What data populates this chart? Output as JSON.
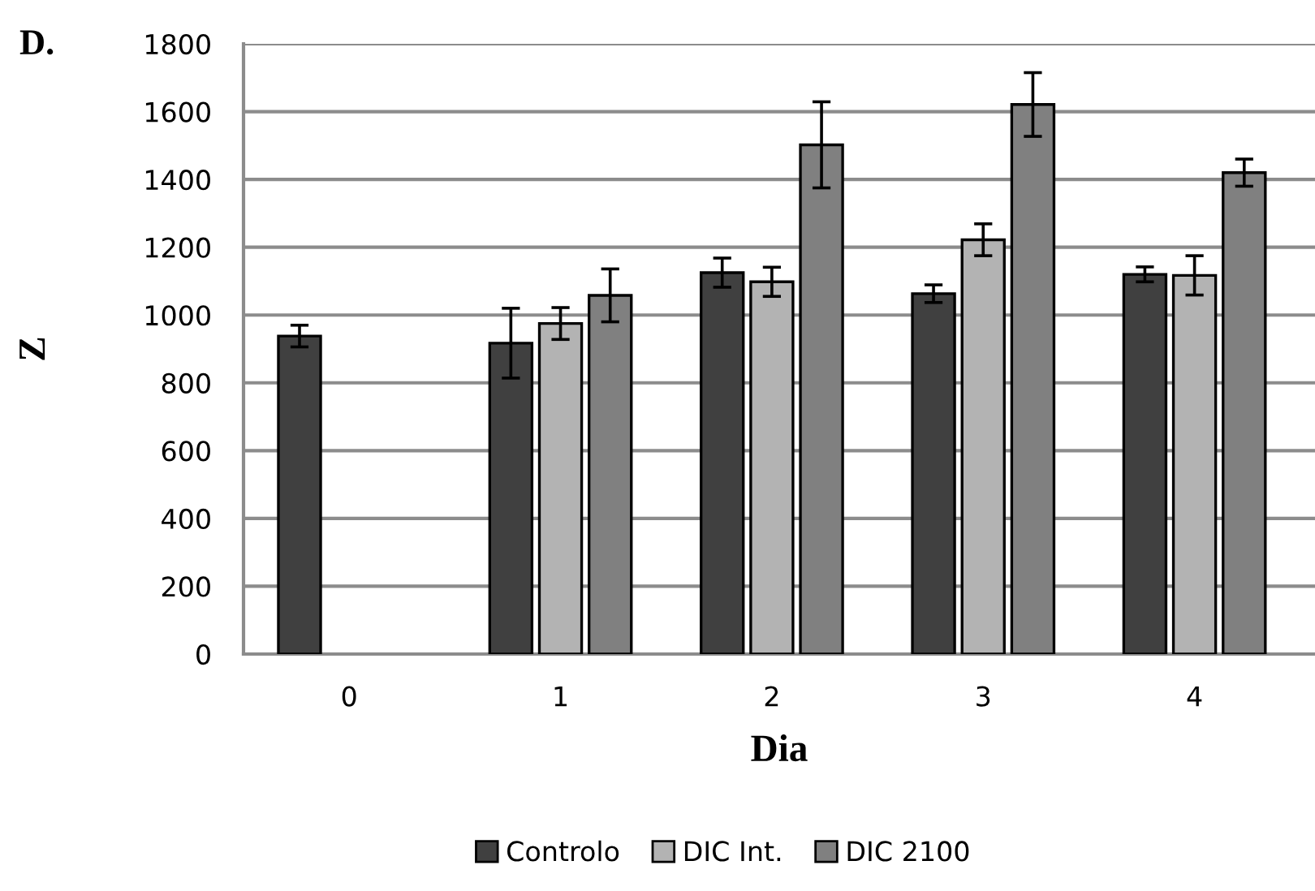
{
  "chart_data": {
    "type": "bar",
    "title": "D.",
    "xlabel": "Dia",
    "ylabel": "Z",
    "categories": [
      "0",
      "1",
      "2",
      "3",
      "4"
    ],
    "series": [
      {
        "name": "Controlo",
        "color": "#404040",
        "values": [
          938,
          917,
          1125,
          1063,
          1120
        ],
        "errors": [
          32,
          103,
          43,
          26,
          22
        ]
      },
      {
        "name": "DIC Int.",
        "color": "#b3b3b3",
        "values": [
          null,
          975,
          1098,
          1222,
          1117
        ],
        "errors": [
          null,
          47,
          43,
          47,
          58
        ]
      },
      {
        "name": "DIC 2100",
        "color": "#808080",
        "values": [
          null,
          1058,
          1502,
          1621,
          1420
        ],
        "errors": [
          null,
          78,
          127,
          94,
          40
        ]
      }
    ],
    "ylim": [
      0,
      1800
    ],
    "yticks": [
      0,
      200,
      400,
      600,
      800,
      1000,
      1200,
      1400,
      1600,
      1800
    ],
    "grid": "y",
    "legend": "bottom"
  }
}
